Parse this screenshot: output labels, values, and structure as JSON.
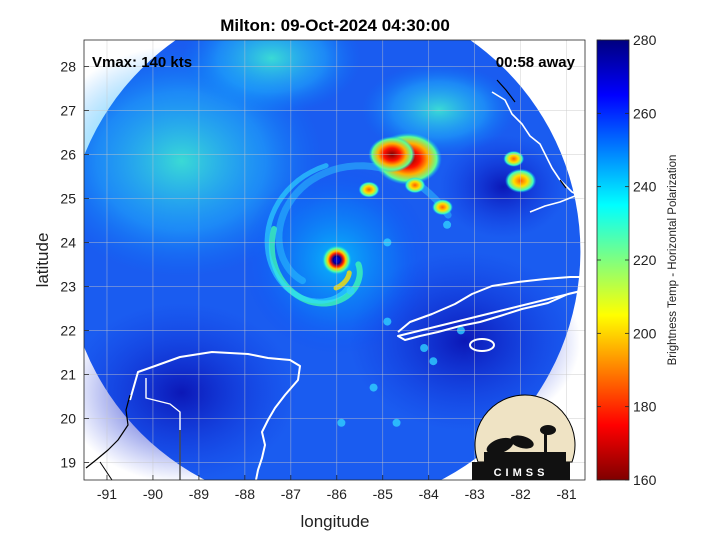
{
  "chart_data": {
    "type": "heatmap",
    "title": "Milton: 09-Oct-2024 04:30:00",
    "annotations": {
      "vmax": "Vmax: 140 kts",
      "away": "00:58 away"
    },
    "xlabel": "longitude",
    "ylabel": "latitude",
    "xlim": [
      -91.5,
      -80.6
    ],
    "ylim": [
      18.6,
      28.6
    ],
    "x_ticks": [
      -91,
      -90,
      -89,
      -88,
      -87,
      -86,
      -85,
      -84,
      -83,
      -82,
      -81
    ],
    "y_ticks": [
      19,
      20,
      21,
      22,
      23,
      24,
      25,
      26,
      27,
      28
    ],
    "grid": true,
    "colorbar": {
      "label": "Brightness Temp - Horizontal Polarization",
      "range": [
        160,
        280
      ],
      "ticks": [
        160,
        180,
        200,
        220,
        240,
        260,
        280
      ],
      "colormap": "jet"
    },
    "storm_center": {
      "lon": -86.0,
      "lat": 23.6
    },
    "swath_circle": {
      "lon": -86.3,
      "lat": 23.8,
      "radius_deg": 5.6
    },
    "cold_cells": [
      {
        "lon": -84.45,
        "lat": 25.9,
        "bt": 170
      },
      {
        "lon": -84.8,
        "lat": 26.0,
        "bt": 185
      },
      {
        "lon": -82.0,
        "lat": 25.4,
        "bt": 205
      },
      {
        "lon": -82.15,
        "lat": 25.9,
        "bt": 215
      },
      {
        "lon": -85.3,
        "lat": 25.2,
        "bt": 225
      },
      {
        "lon": -83.7,
        "lat": 24.8,
        "bt": 225
      },
      {
        "lon": -84.3,
        "lat": 25.3,
        "bt": 215
      }
    ]
  },
  "logo": {
    "text": "CIMSS"
  }
}
